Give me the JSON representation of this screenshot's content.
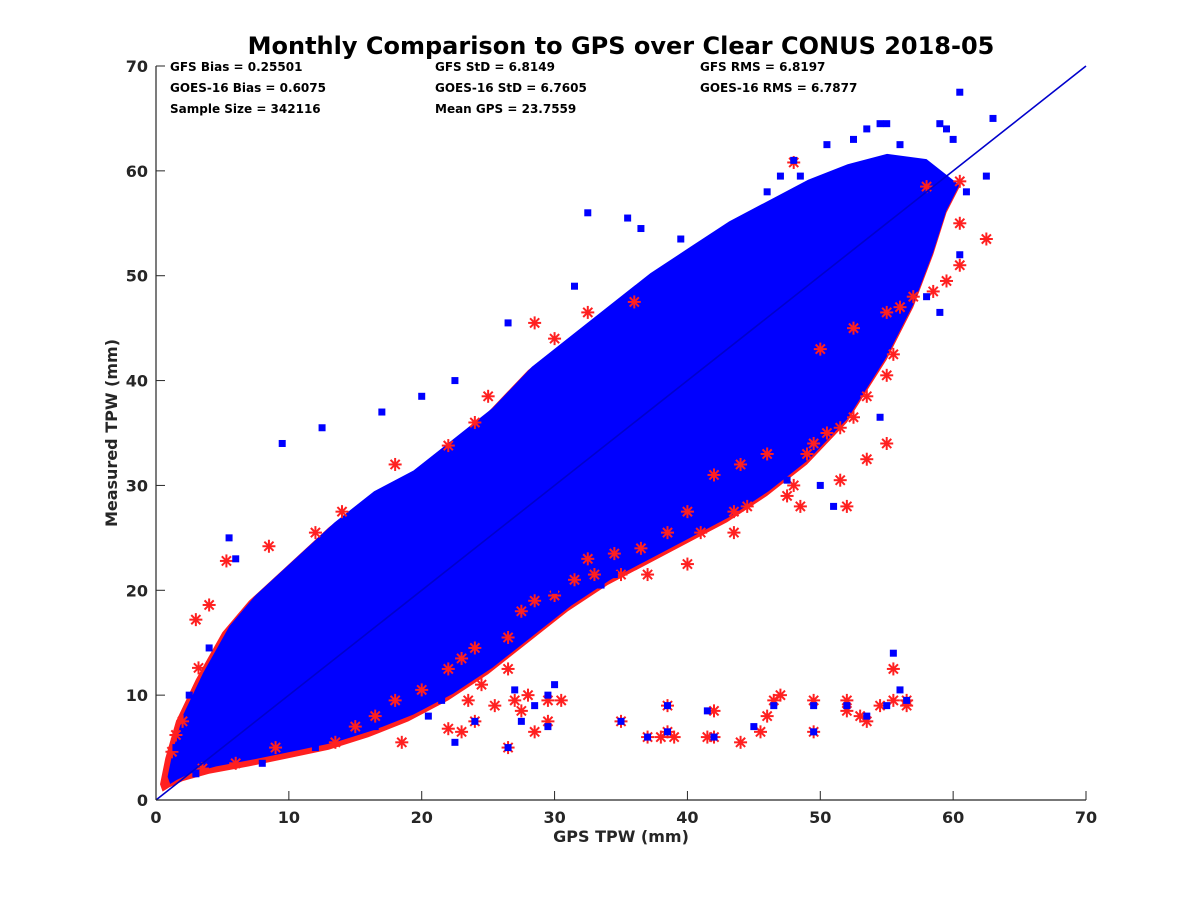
{
  "chart_data": {
    "type": "scatter",
    "title": "Monthly Comparison to GPS over Clear CONUS 2018-05",
    "xlabel": "GPS TPW (mm)",
    "ylabel": "Measured TPW (mm)",
    "xlim": [
      0,
      70
    ],
    "ylim": [
      0,
      70
    ],
    "xticks": [
      0,
      10,
      20,
      30,
      40,
      50,
      60,
      70
    ],
    "yticks": [
      0,
      10,
      20,
      30,
      40,
      50,
      60,
      70
    ],
    "grid": false,
    "reference_line": {
      "name": "1:1 line",
      "x": [
        0,
        70
      ],
      "y": [
        0,
        70
      ],
      "color": "#0000cc"
    },
    "annotations": [
      [
        "GFS Bias = 0.25501",
        "GFS StD = 6.8149",
        "GFS RMS = 6.8197"
      ],
      [
        "GOES-16 Bias = 0.6075",
        "GOES-16 StD = 6.7605",
        "GOES-16 RMS = 6.7877"
      ],
      [
        "Sample Size = 342116",
        "Mean GPS = 23.7559",
        ""
      ]
    ],
    "series": [
      {
        "marker": "asterisk",
        "color": "#ff2020",
        "points": [
          [
            1.2,
            4.6
          ],
          [
            1.5,
            6.2
          ],
          [
            2.0,
            7.5
          ],
          [
            3.2,
            12.6
          ],
          [
            3.0,
            17.2
          ],
          [
            4.0,
            18.6
          ],
          [
            5.3,
            22.8
          ],
          [
            8.5,
            24.2
          ],
          [
            12.0,
            25.5
          ],
          [
            14.0,
            27.5
          ],
          [
            18.0,
            32.0
          ],
          [
            22.0,
            33.8
          ],
          [
            24.0,
            36.0
          ],
          [
            25.0,
            38.5
          ],
          [
            28.5,
            45.5
          ],
          [
            30.0,
            44.0
          ],
          [
            32.5,
            46.5
          ],
          [
            36.0,
            47.5
          ],
          [
            48.0,
            60.8
          ],
          [
            58.0,
            58.5
          ],
          [
            60.5,
            59.0
          ],
          [
            60.5,
            55.0
          ],
          [
            62.5,
            53.5
          ],
          [
            60.5,
            51.0
          ],
          [
            59.5,
            49.5
          ],
          [
            58.5,
            48.5
          ],
          [
            57.0,
            48.0
          ],
          [
            56.0,
            47.0
          ],
          [
            55.0,
            46.5
          ],
          [
            55.5,
            42.5
          ],
          [
            55.0,
            40.5
          ],
          [
            53.5,
            38.5
          ],
          [
            52.5,
            36.5
          ],
          [
            51.5,
            35.5
          ],
          [
            50.5,
            35.0
          ],
          [
            49.5,
            34.0
          ],
          [
            55.0,
            34.0
          ],
          [
            53.5,
            32.5
          ],
          [
            51.5,
            30.5
          ],
          [
            48.0,
            30.0
          ],
          [
            48.5,
            28.0
          ],
          [
            52.0,
            28.0
          ],
          [
            47.5,
            29.0
          ],
          [
            44.5,
            28.0
          ],
          [
            43.5,
            27.5
          ],
          [
            40.0,
            27.5
          ],
          [
            43.5,
            25.5
          ],
          [
            41.0,
            25.5
          ],
          [
            38.5,
            25.5
          ],
          [
            36.5,
            24.0
          ],
          [
            34.5,
            23.5
          ],
          [
            32.5,
            23.0
          ],
          [
            40.0,
            22.5
          ],
          [
            37.0,
            21.5
          ],
          [
            35.0,
            21.5
          ],
          [
            33.0,
            21.5
          ],
          [
            31.5,
            21.0
          ],
          [
            30.0,
            19.5
          ],
          [
            28.5,
            19.0
          ],
          [
            27.5,
            18.0
          ],
          [
            26.5,
            15.5
          ],
          [
            24.0,
            14.5
          ],
          [
            23.0,
            13.5
          ],
          [
            22.0,
            12.5
          ],
          [
            26.5,
            12.5
          ],
          [
            24.5,
            11.0
          ],
          [
            20.0,
            10.5
          ],
          [
            18.0,
            9.5
          ],
          [
            16.5,
            8.0
          ],
          [
            15.0,
            7.0
          ],
          [
            13.5,
            5.5
          ],
          [
            18.5,
            5.5
          ],
          [
            9.0,
            5.0
          ],
          [
            6.0,
            3.5
          ],
          [
            3.5,
            3.0
          ],
          [
            22.0,
            6.8
          ],
          [
            23.0,
            6.5
          ],
          [
            24.0,
            7.5
          ],
          [
            25.5,
            9.0
          ],
          [
            27.0,
            9.5
          ],
          [
            27.5,
            8.5
          ],
          [
            23.5,
            9.5
          ],
          [
            26.5,
            5.0
          ],
          [
            28.5,
            6.5
          ],
          [
            29.5,
            7.5
          ],
          [
            29.5,
            9.5
          ],
          [
            28.0,
            10.0
          ],
          [
            30.5,
            9.5
          ],
          [
            35.0,
            7.5
          ],
          [
            37.0,
            6.0
          ],
          [
            38.0,
            6.0
          ],
          [
            38.5,
            6.5
          ],
          [
            38.5,
            9.0
          ],
          [
            39.0,
            6.0
          ],
          [
            41.5,
            6.0
          ],
          [
            42.0,
            8.5
          ],
          [
            42.0,
            6.0
          ],
          [
            44.0,
            5.5
          ],
          [
            45.5,
            6.5
          ],
          [
            46.0,
            8.0
          ],
          [
            46.5,
            9.5
          ],
          [
            47.0,
            10.0
          ],
          [
            49.5,
            9.5
          ],
          [
            49.5,
            6.5
          ],
          [
            52.0,
            9.5
          ],
          [
            52.0,
            8.5
          ],
          [
            53.0,
            8.0
          ],
          [
            53.5,
            7.5
          ],
          [
            54.5,
            9.0
          ],
          [
            55.5,
            9.5
          ],
          [
            56.5,
            9.5
          ],
          [
            56.5,
            9.0
          ],
          [
            55.5,
            12.5
          ],
          [
            49.0,
            33.0
          ],
          [
            46.0,
            33.0
          ],
          [
            44.0,
            32.0
          ],
          [
            42.0,
            31.0
          ],
          [
            52.5,
            45.0
          ],
          [
            50.0,
            43.0
          ]
        ]
      },
      {
        "marker": "square",
        "color": "#0000ff",
        "points": [
          [
            1.5,
            5.0
          ],
          [
            2.5,
            10.0
          ],
          [
            4.0,
            14.5
          ],
          [
            5.5,
            25.0
          ],
          [
            6.0,
            23.0
          ],
          [
            9.5,
            34.0
          ],
          [
            12.5,
            35.5
          ],
          [
            17.0,
            37.0
          ],
          [
            20.0,
            38.5
          ],
          [
            22.5,
            40.0
          ],
          [
            26.5,
            45.5
          ],
          [
            31.5,
            49.0
          ],
          [
            32.5,
            56.0
          ],
          [
            35.5,
            55.5
          ],
          [
            36.5,
            54.5
          ],
          [
            39.5,
            53.5
          ],
          [
            44.5,
            55.0
          ],
          [
            46.0,
            58.0
          ],
          [
            47.0,
            59.5
          ],
          [
            48.5,
            59.5
          ],
          [
            48.0,
            61.0
          ],
          [
            50.5,
            62.5
          ],
          [
            52.5,
            63.0
          ],
          [
            53.5,
            64.0
          ],
          [
            54.5,
            64.5
          ],
          [
            55.0,
            64.5
          ],
          [
            56.0,
            62.5
          ],
          [
            59.0,
            64.5
          ],
          [
            59.5,
            64.0
          ],
          [
            60.0,
            63.0
          ],
          [
            60.5,
            67.5
          ],
          [
            63.0,
            65.0
          ],
          [
            62.5,
            59.5
          ],
          [
            61.0,
            58.0
          ],
          [
            60.5,
            52.0
          ],
          [
            59.0,
            46.5
          ],
          [
            58.0,
            48.0
          ],
          [
            54.5,
            36.5
          ],
          [
            51.0,
            28.0
          ],
          [
            50.0,
            30.0
          ],
          [
            47.5,
            30.5
          ],
          [
            43.5,
            28.5
          ],
          [
            34.5,
            21.5
          ],
          [
            33.5,
            20.5
          ],
          [
            30.0,
            20.0
          ],
          [
            26.5,
            17.0
          ],
          [
            28.0,
            16.0
          ],
          [
            25.0,
            14.5
          ],
          [
            22.0,
            11.0
          ],
          [
            21.5,
            9.5
          ],
          [
            20.5,
            8.0
          ],
          [
            16.5,
            7.0
          ],
          [
            12.0,
            5.0
          ],
          [
            8.0,
            3.5
          ],
          [
            3.0,
            2.5
          ],
          [
            22.5,
            5.5
          ],
          [
            24.0,
            7.5
          ],
          [
            26.5,
            5.0
          ],
          [
            27.5,
            7.5
          ],
          [
            28.5,
            9.0
          ],
          [
            29.5,
            10.0
          ],
          [
            29.5,
            7.0
          ],
          [
            30.0,
            11.0
          ],
          [
            27.0,
            10.5
          ],
          [
            35.0,
            7.5
          ],
          [
            37.0,
            6.0
          ],
          [
            38.5,
            9.0
          ],
          [
            38.5,
            6.5
          ],
          [
            41.5,
            8.5
          ],
          [
            42.0,
            6.0
          ],
          [
            45.0,
            7.0
          ],
          [
            46.5,
            9.0
          ],
          [
            49.5,
            9.0
          ],
          [
            49.5,
            6.5
          ],
          [
            52.0,
            9.0
          ],
          [
            53.5,
            8.0
          ],
          [
            55.0,
            9.0
          ],
          [
            55.5,
            14.0
          ],
          [
            56.5,
            9.5
          ],
          [
            56.0,
            10.5
          ]
        ]
      }
    ]
  }
}
